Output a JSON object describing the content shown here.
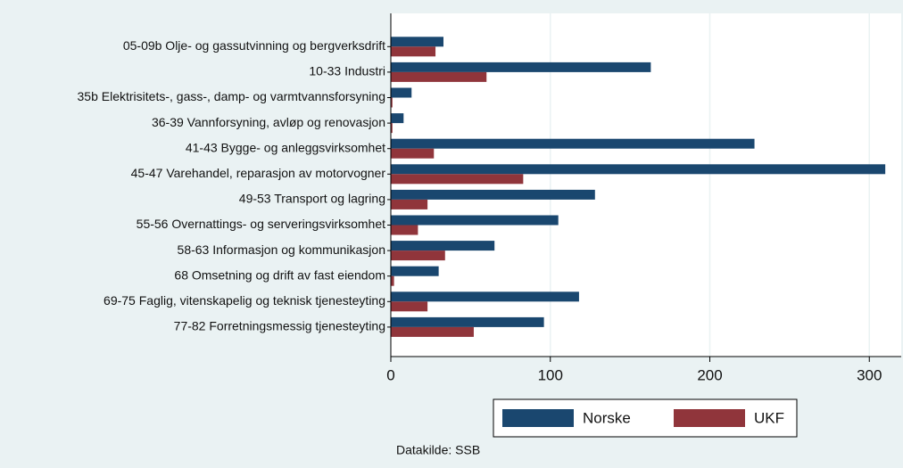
{
  "chart_data": {
    "type": "bar",
    "orientation": "horizontal",
    "categories": [
      "05-09b Olje- og gassutvinning og bergverksdrift",
      "10-33 Industri",
      "35b Elektrisitets-, gass-, damp- og varmtvannsforsyning",
      "36-39 Vannforsyning, avløp og renovasjon",
      "41-43 Bygge- og anleggsvirksomhet",
      "45-47 Varehandel, reparasjon av motorvogner",
      "49-53 Transport og lagring",
      "55-56 Overnattings- og serveringsvirksomhet",
      "58-63 Informasjon og kommunikasjon",
      "68 Omsetning og drift av fast eiendom",
      "69-75 Faglig, vitenskapelig og teknisk tjenesteyting",
      "77-82 Forretningsmessig tjenesteyting"
    ],
    "series": [
      {
        "name": "Norske",
        "color": "#1a476f",
        "values": [
          33,
          163,
          13,
          8,
          228,
          310,
          128,
          105,
          65,
          30,
          118,
          96
        ]
      },
      {
        "name": "UKF",
        "color": "#90353b",
        "values": [
          28,
          60,
          1,
          1,
          27,
          83,
          23,
          17,
          34,
          2,
          23,
          52
        ]
      }
    ],
    "xlim": [
      0,
      320
    ],
    "xticks": [
      0,
      100,
      200,
      300
    ],
    "grid": true,
    "note": "Datakilde: SSB"
  }
}
